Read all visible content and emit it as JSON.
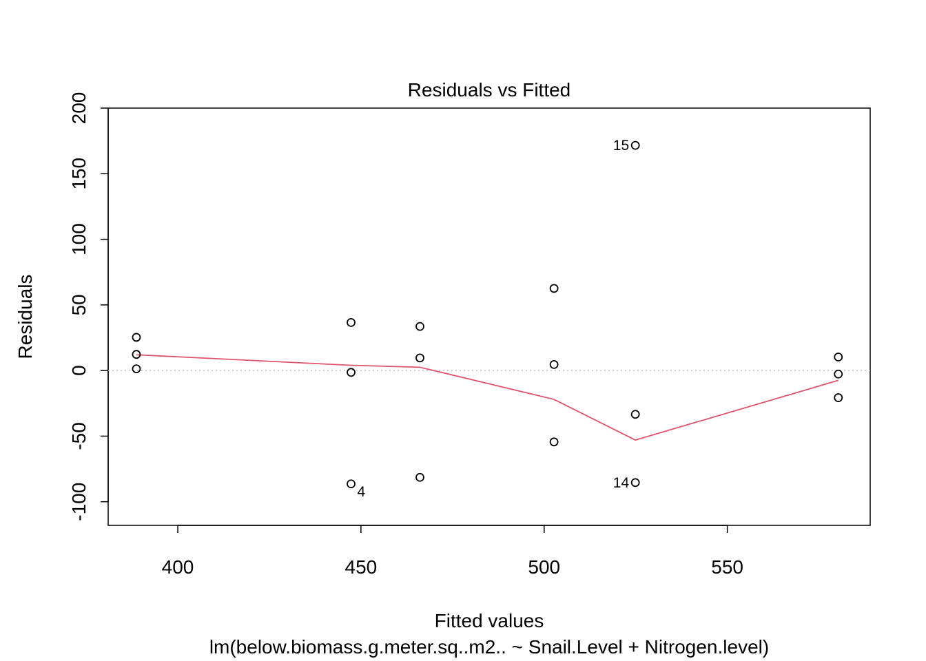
{
  "chart_data": {
    "type": "scatter",
    "title": "Residuals vs Fitted",
    "xlabel": "Fitted values",
    "ylabel": "Residuals",
    "subtitle": "lm(below.biomass.g.meter.sq..m2.. ~ Snail.Level + Nitrogen.level)",
    "xlim": [
      381,
      589
    ],
    "ylim": [
      -118,
      200
    ],
    "x_ticks": [
      400,
      450,
      500,
      550
    ],
    "x_tick_labels": [
      "400",
      "450",
      "500",
      "550"
    ],
    "y_ticks": [
      -100,
      -50,
      0,
      50,
      100,
      150,
      200
    ],
    "y_tick_labels": [
      "-100",
      "-50",
      "0",
      "50",
      "100",
      "150",
      "200"
    ],
    "grid": false,
    "reference_line": {
      "y": 0,
      "style": "dotted",
      "color": "#BEBEBE"
    },
    "points": [
      {
        "x": 388.7,
        "y": 25.3
      },
      {
        "x": 388.7,
        "y": 12.3
      },
      {
        "x": 388.7,
        "y": 1.3
      },
      {
        "x": 447.3,
        "y": 36.6
      },
      {
        "x": 447.3,
        "y": -1.4
      },
      {
        "x": 447.3,
        "y": -86.4
      },
      {
        "x": 466.1,
        "y": 33.6
      },
      {
        "x": 466.1,
        "y": 9.6
      },
      {
        "x": 466.1,
        "y": -81.4
      },
      {
        "x": 502.7,
        "y": 62.6
      },
      {
        "x": 502.7,
        "y": 4.6
      },
      {
        "x": 502.7,
        "y": -54.4
      },
      {
        "x": 524.9,
        "y": 171.6
      },
      {
        "x": 524.9,
        "y": -33.4
      },
      {
        "x": 524.9,
        "y": -85.4
      },
      {
        "x": 580.3,
        "y": 10.3
      },
      {
        "x": 580.3,
        "y": -2.7
      },
      {
        "x": 580.3,
        "y": -20.7
      }
    ],
    "point_labels": [
      {
        "text": "15",
        "x": 524.9,
        "y": 171.6,
        "side": "left"
      },
      {
        "text": "4",
        "x": 447.3,
        "y": -86.4,
        "side": "right"
      },
      {
        "text": "14",
        "x": 524.9,
        "y": -85.4,
        "side": "left"
      }
    ],
    "smooth_line": {
      "color": "#DF536B",
      "x": [
        388.7,
        447.3,
        466.1,
        502.7,
        524.9,
        580.3
      ],
      "y": [
        12.0,
        4.0,
        2.5,
        -22.0,
        -53.0,
        -7.5
      ]
    }
  }
}
